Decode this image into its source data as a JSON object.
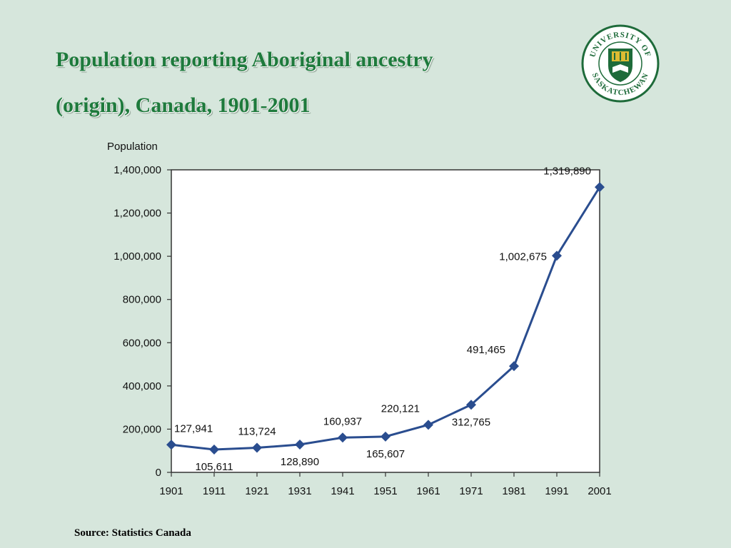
{
  "slide": {
    "title_line1": "Population reporting Aboriginal ancestry",
    "title_line2": "(origin), Canada, 1901-2001",
    "source": "Source: Statistics Canada"
  },
  "logo": {
    "top_text": "UNIVERSITY OF",
    "bottom_text": "SASKATCHEWAN",
    "colors": {
      "ring": "#1e6b3a",
      "shield": "#1e6b3a",
      "accent": "#e8c032"
    }
  },
  "colors": {
    "background": "#d6e6dc",
    "title": "#1e7a3c",
    "line": "#2a4d8f",
    "plot_area": "#ffffff"
  },
  "chart_data": {
    "type": "line",
    "title": "",
    "xlabel": "",
    "ylabel": "Population",
    "x": [
      "1901",
      "1911",
      "1921",
      "1931",
      "1941",
      "1951",
      "1961",
      "1971",
      "1981",
      "1991",
      "2001"
    ],
    "values": [
      127941,
      105611,
      113724,
      128890,
      160937,
      165607,
      220121,
      312765,
      491465,
      1002675,
      1319890
    ],
    "data_labels": [
      "127,941",
      "105,611",
      "113,724",
      "128,890",
      "160,937",
      "165,607",
      "220,121",
      "312,765",
      "491,465",
      "1,002,675",
      "1,319,890"
    ],
    "label_positions": [
      "above-right",
      "below",
      "above",
      "below",
      "above",
      "below",
      "above-left",
      "below",
      "above-left",
      "left",
      "above-left"
    ],
    "ylim": [
      0,
      1400000
    ],
    "yticks": [
      0,
      200000,
      400000,
      600000,
      800000,
      1000000,
      1200000,
      1400000
    ],
    "ytick_labels": [
      "0",
      "200,000",
      "400,000",
      "600,000",
      "800,000",
      "1,000,000",
      "1,200,000",
      "1,400,000"
    ],
    "grid": false,
    "marker": "diamond"
  }
}
